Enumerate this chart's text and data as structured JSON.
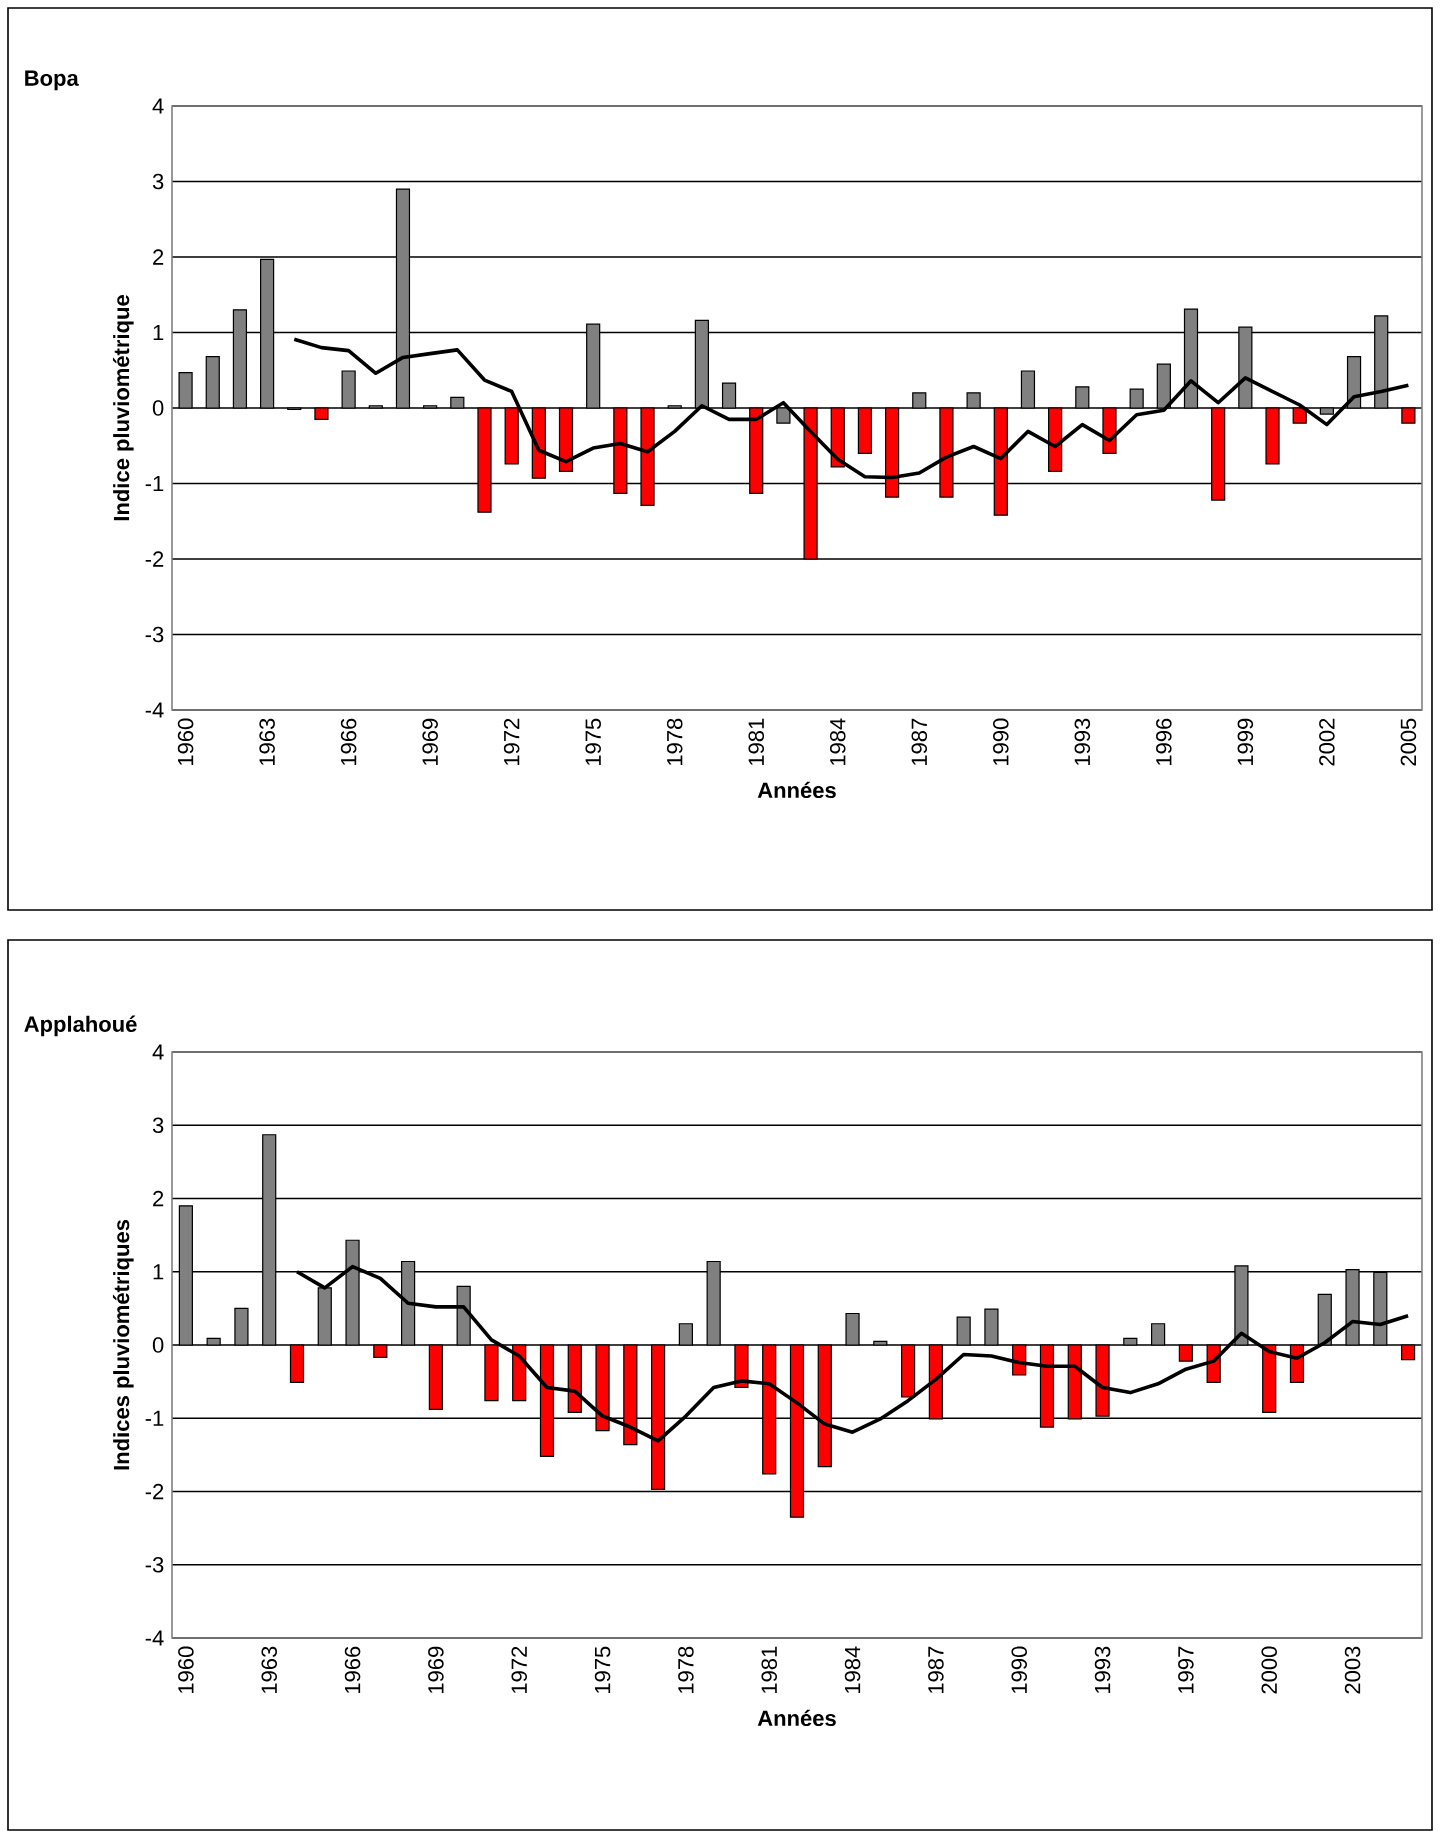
{
  "chart_data": [
    {
      "type": "bar",
      "title": "Bopa",
      "xlabel": "Années",
      "ylabel": "Indice pluviométrique",
      "categories": [
        "1960",
        null,
        null,
        "1963",
        null,
        null,
        "1966",
        null,
        null,
        "1969",
        null,
        null,
        "1972",
        null,
        null,
        "1975",
        null,
        null,
        "1978",
        null,
        null,
        "1981",
        null,
        null,
        "1984",
        null,
        null,
        "1987",
        null,
        null,
        "1990",
        null,
        null,
        "1993",
        null,
        null,
        "1996",
        null,
        null,
        "1999",
        null,
        null,
        "2002",
        null,
        null,
        "2005"
      ],
      "series": [
        {
          "colors": [
            "#808080",
            "#808080",
            "#808080",
            "#808080",
            "#808080",
            "#ff0000",
            "#808080",
            "#808080",
            "#808080",
            "#808080",
            "#808080",
            "#ff0000",
            "#ff0000",
            "#ff0000",
            "#ff0000",
            "#808080",
            "#ff0000",
            "#ff0000",
            "#808080",
            "#808080",
            "#808080",
            "#ff0000",
            "#808080",
            "#ff0000",
            "#ff0000",
            "#ff0000",
            "#ff0000",
            "#808080",
            "#ff0000",
            "#808080",
            "#ff0000",
            "#808080",
            "#ff0000",
            "#808080",
            "#ff0000",
            "#808080",
            "#808080",
            "#808080",
            "#ff0000",
            "#808080",
            "#ff0000",
            "#ff0000",
            "#808080",
            "#808080",
            "#808080",
            "#ff0000"
          ],
          "values": [
            0.47,
            0.68,
            1.3,
            1.97,
            -0.02,
            -0.15,
            0.49,
            0.03,
            2.9,
            0.03,
            0.14,
            -1.38,
            -0.74,
            -0.93,
            -0.84,
            1.11,
            -1.13,
            -1.29,
            0.03,
            1.16,
            0.33,
            -1.13,
            -0.2,
            -2.0,
            -0.78,
            -0.6,
            -1.18,
            0.2,
            -1.18,
            0.2,
            -1.42,
            0.49,
            -0.84,
            0.28,
            -0.6,
            0.25,
            0.58,
            1.31,
            -1.22,
            1.07,
            -0.74,
            -0.2,
            -0.08,
            0.68,
            1.22,
            -0.2
          ]
        },
        {
          "type": "line",
          "color": "#000000",
          "values": [
            null,
            null,
            null,
            null,
            0.91,
            0.8,
            0.76,
            0.46,
            0.67,
            0.72,
            0.77,
            0.37,
            0.22,
            -0.56,
            -0.71,
            -0.53,
            -0.47,
            -0.58,
            -0.31,
            0.03,
            -0.15,
            -0.15,
            0.07,
            -0.31,
            -0.68,
            -0.91,
            -0.92,
            -0.86,
            -0.65,
            -0.51,
            -0.67,
            -0.31,
            -0.51,
            -0.22,
            -0.43,
            -0.09,
            -0.03,
            0.36,
            0.07,
            0.4,
            0.22,
            0.04,
            -0.22,
            0.15,
            0.22,
            0.3
          ]
        }
      ],
      "ylim": [
        -4,
        4
      ],
      "yticks": [
        -4,
        -3,
        -2,
        -1,
        0,
        1,
        2,
        3,
        4
      ],
      "grid": "y"
    },
    {
      "type": "bar",
      "title": "Applahoué",
      "xlabel": "Années",
      "ylabel": "Indices pluviométriques",
      "categories": [
        "1960",
        null,
        null,
        "1963",
        null,
        null,
        "1966",
        null,
        null,
        "1969",
        null,
        null,
        "1972",
        null,
        null,
        "1975",
        null,
        null,
        "1978",
        null,
        null,
        "1981",
        null,
        null,
        "1984",
        null,
        null,
        "1987",
        null,
        null,
        "1990",
        null,
        null,
        "1993",
        null,
        null,
        "1997",
        null,
        null,
        "2000",
        null,
        null,
        "2003",
        null,
        null
      ],
      "series": [
        {
          "colors": [
            "#808080",
            "#808080",
            "#808080",
            "#808080",
            "#ff0000",
            "#808080",
            "#808080",
            "#ff0000",
            "#808080",
            "#ff0000",
            "#808080",
            "#ff0000",
            "#ff0000",
            "#ff0000",
            "#ff0000",
            "#ff0000",
            "#ff0000",
            "#ff0000",
            "#808080",
            "#808080",
            "#ff0000",
            "#ff0000",
            "#ff0000",
            "#ff0000",
            "#808080",
            "#808080",
            "#ff0000",
            "#ff0000",
            "#808080",
            "#808080",
            "#ff0000",
            "#ff0000",
            "#ff0000",
            "#ff0000",
            "#808080",
            "#808080",
            "#ff0000",
            "#ff0000",
            "#808080",
            "#ff0000",
            "#ff0000",
            "#808080",
            "#808080",
            "#808080",
            "#ff0000"
          ],
          "values": [
            1.9,
            0.09,
            0.5,
            2.87,
            -0.51,
            0.78,
            1.43,
            -0.17,
            1.14,
            -0.88,
            0.8,
            -0.76,
            -0.76,
            -1.52,
            -0.92,
            -1.17,
            -1.36,
            -1.97,
            0.29,
            1.14,
            -0.58,
            -1.76,
            -2.35,
            -1.66,
            0.43,
            0.05,
            -0.71,
            -1.01,
            0.38,
            0.49,
            -0.41,
            -1.12,
            -1.01,
            -0.97,
            0.09,
            0.29,
            -0.22,
            -0.51,
            1.08,
            -0.92,
            -0.51,
            0.69,
            1.03,
            0.99,
            -0.2
          ]
        },
        {
          "type": "line",
          "color": "#000000",
          "values": [
            null,
            null,
            null,
            null,
            1.0,
            0.78,
            1.07,
            0.91,
            0.57,
            0.52,
            0.52,
            0.07,
            -0.15,
            -0.58,
            -0.63,
            -0.97,
            -1.12,
            -1.31,
            -0.97,
            -0.58,
            -0.49,
            -0.53,
            -0.79,
            -1.08,
            -1.19,
            -1.01,
            -0.76,
            -0.47,
            -0.13,
            -0.15,
            -0.24,
            -0.29,
            -0.29,
            -0.58,
            -0.65,
            -0.53,
            -0.33,
            -0.22,
            0.16,
            -0.09,
            -0.18,
            0.03,
            0.32,
            0.28,
            0.4
          ]
        }
      ],
      "ylim": [
        -4,
        4
      ],
      "yticks": [
        -4,
        -3,
        -2,
        -1,
        0,
        1,
        2,
        3,
        4
      ],
      "grid": "y"
    }
  ]
}
